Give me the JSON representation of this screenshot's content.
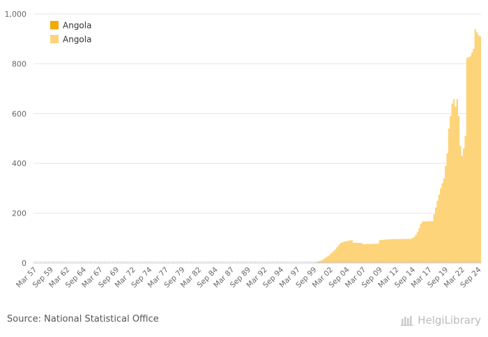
{
  "chart_data": {
    "type": "area",
    "title": "",
    "xlabel": "",
    "ylabel": "",
    "ylim": [
      0,
      1000
    ],
    "yticks": [
      0,
      200,
      400,
      600,
      800,
      1000
    ],
    "ytick_labels": [
      "0",
      "200",
      "400",
      "600",
      "800",
      "1,000"
    ],
    "start_year": 1957,
    "start_quarter": 1,
    "end_year": 2024,
    "end_quarter": 4,
    "tick_labels": [
      "Mar 57",
      "Sep 59",
      "Mar 62",
      "Sep 64",
      "Mar 67",
      "Sep 69",
      "Mar 72",
      "Sep 74",
      "Mar 77",
      "Sep 79",
      "Mar 82",
      "Sep 84",
      "Mar 87",
      "Sep 89",
      "Mar 92",
      "Sep 94",
      "Mar 97",
      "Sep 99",
      "Mar 02",
      "Sep 04",
      "Mar 07",
      "Sep 09",
      "Mar 12",
      "Sep 14",
      "Mar 17",
      "Sep 19",
      "Mar 22",
      "Sep 24"
    ],
    "series": [
      {
        "name": "Angola",
        "color": "#f5a800",
        "values": []
      },
      {
        "name": "Angola",
        "color": "#fdd479",
        "keypoints": [
          [
            "1957Q1",
            0
          ],
          [
            "1999Q1",
            0
          ],
          [
            "1999Q4",
            2
          ],
          [
            "2000Q4",
            12
          ],
          [
            "2001Q4",
            30
          ],
          [
            "2002Q4",
            55
          ],
          [
            "2003Q3",
            80
          ],
          [
            "2004Q1",
            85
          ],
          [
            "2004Q4",
            90
          ],
          [
            "2005Q2",
            92
          ],
          [
            "2005Q3",
            82
          ],
          [
            "2006Q4",
            80
          ],
          [
            "2007Q1",
            76
          ],
          [
            "2009Q1",
            77
          ],
          [
            "2009Q2",
            78
          ],
          [
            "2009Q3",
            92
          ],
          [
            "2011Q2",
            96
          ],
          [
            "2014Q2",
            97
          ],
          [
            "2014Q4",
            105
          ],
          [
            "2015Q2",
            125
          ],
          [
            "2015Q4",
            158
          ],
          [
            "2016Q1",
            167
          ],
          [
            "2017Q3",
            168
          ],
          [
            "2018Q2",
            250
          ],
          [
            "2018Q4",
            300
          ],
          [
            "2019Q2",
            340
          ],
          [
            "2019Q4",
            440
          ],
          [
            "2020Q1",
            540
          ],
          [
            "2020Q3",
            640
          ],
          [
            "2020Q4",
            658
          ],
          [
            "2021Q1",
            628
          ],
          [
            "2021Q2",
            658
          ],
          [
            "2021Q3",
            590
          ],
          [
            "2021Q4",
            470
          ],
          [
            "2022Q1",
            430
          ],
          [
            "2022Q2",
            460
          ],
          [
            "2022Q3",
            510
          ],
          [
            "2022Q4",
            823
          ],
          [
            "2023Q2",
            830
          ],
          [
            "2023Q4",
            860
          ],
          [
            "2024Q1",
            938
          ],
          [
            "2024Q3",
            915
          ],
          [
            "2024Q4",
            910
          ]
        ]
      }
    ],
    "legend_position": "top-left"
  },
  "source": "Source: National Statistical Office",
  "brand": "HelgiLibrary",
  "colors": {
    "grid": "#e6e6e6",
    "axis_baseline_ticks": "#b9c8e6",
    "text": "#666666"
  }
}
